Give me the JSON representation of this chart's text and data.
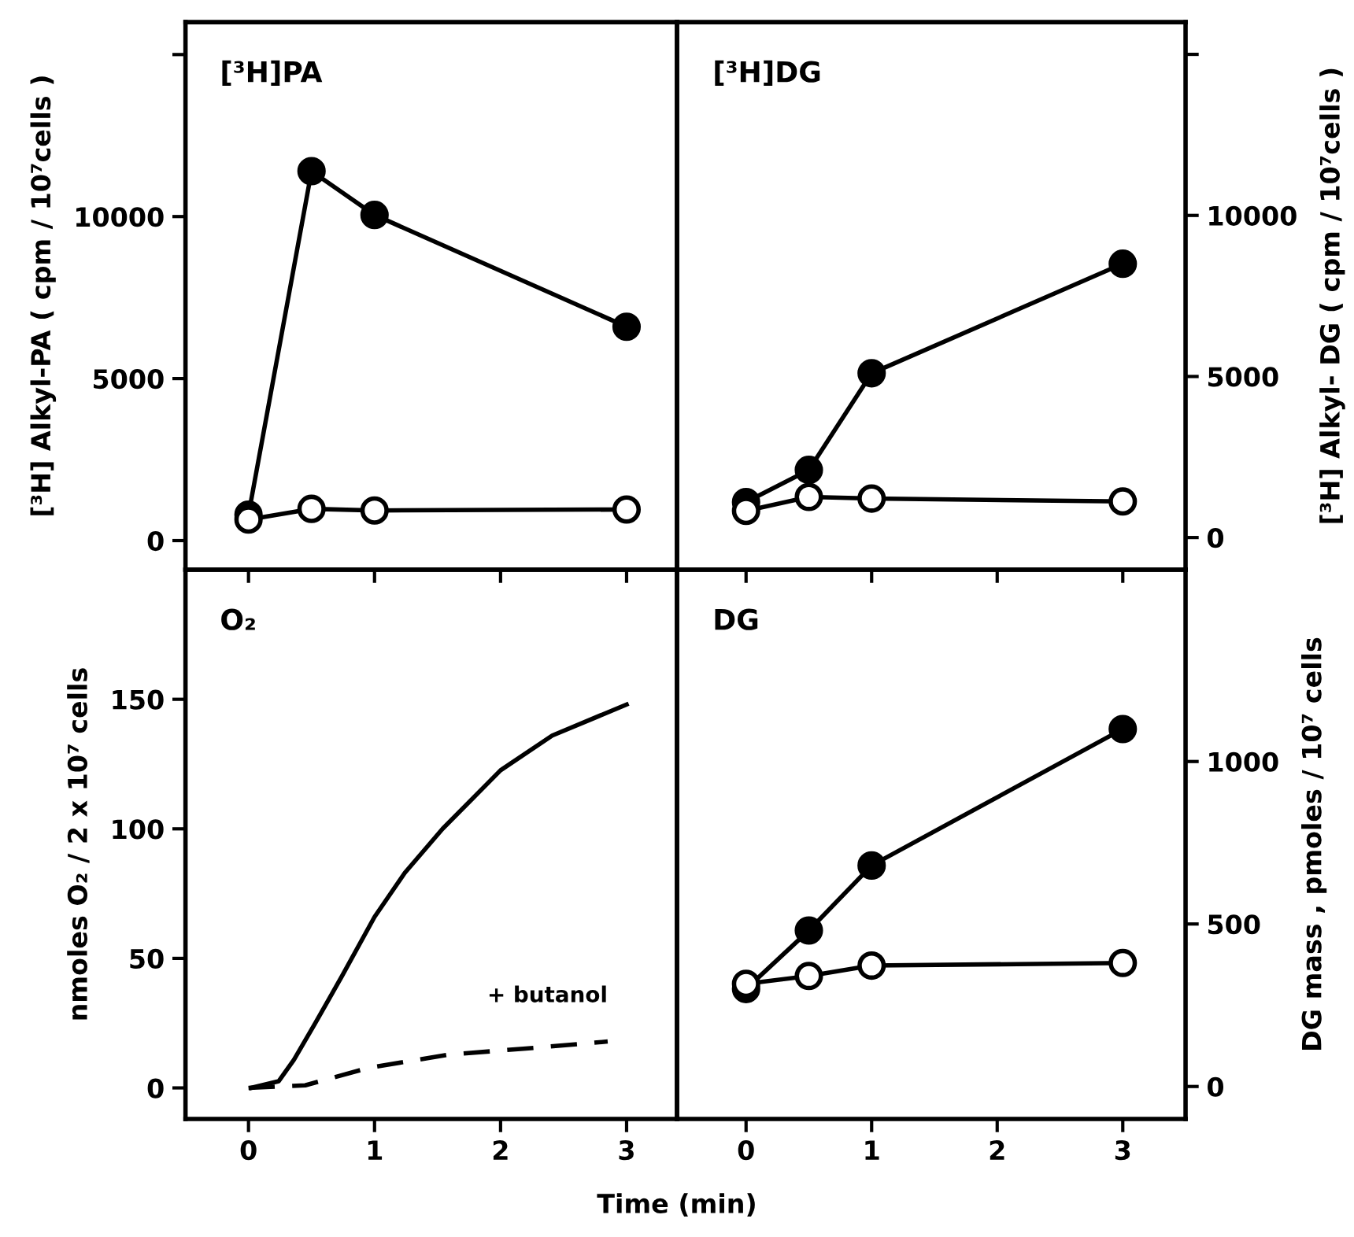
{
  "chart_data": [
    {
      "type": "line",
      "title": "[³H]PA",
      "ylabel": "[³H] Alkyl-PA ( cpm / 10⁷cells )",
      "x": [
        0,
        0.5,
        1,
        3
      ],
      "xlim": [
        -0.5,
        3.4
      ],
      "xticks": [
        {
          "value": 0,
          "label": null
        },
        {
          "value": 1,
          "label": null
        },
        {
          "value": 2,
          "label": null
        },
        {
          "value": 3,
          "label": null
        }
      ],
      "ylim": [
        -900,
        16000
      ],
      "yticks": [
        0,
        5000,
        10000,
        {
          "value": 15000,
          "label": null
        }
      ],
      "tick_labels": "y",
      "marker": "circle",
      "grid": false,
      "legend": false,
      "series": [
        {
          "color": "#000000",
          "values": [
            800,
            11400,
            10050,
            6600
          ]
        },
        {
          "color": "#ffffff",
          "values": [
            650,
            980,
            930,
            960
          ]
        }
      ]
    },
    {
      "type": "line",
      "title": "[³H]DG",
      "y2label": "[³H] Alkyl- DG ( cpm / 10⁷cells )",
      "x": [
        0,
        0.5,
        1,
        3
      ],
      "xlim": [
        -0.55,
        3.5
      ],
      "xticks": [
        {
          "value": 0,
          "label": null
        },
        {
          "value": 1,
          "label": null
        },
        {
          "value": 2,
          "label": null
        },
        {
          "value": 3,
          "label": null
        }
      ],
      "y2lim": [
        -1000,
        16000
      ],
      "y2ticks": [
        0,
        5000,
        10000,
        {
          "value": 15000,
          "label": null
        }
      ],
      "tick_labels": "y",
      "marker": "circle",
      "grid": false,
      "legend": false,
      "series": [
        {
          "color": "#000000",
          "axis": "y2",
          "values": [
            1100,
            2100,
            5100,
            8500
          ]
        },
        {
          "color": "#ffffff",
          "axis": "y2",
          "values": [
            830,
            1260,
            1210,
            1120
          ]
        }
      ]
    },
    {
      "type": "line",
      "title": "O₂",
      "ylabel": "nmoles O₂ / 2 x 10⁷ cells",
      "xlabel": "Time (min)",
      "xlim": [
        -0.5,
        3.4
      ],
      "xticks": [
        0,
        1,
        2,
        3
      ],
      "ylim": [
        -12,
        200
      ],
      "yticks": [
        0,
        50,
        100,
        150
      ],
      "marker": "none",
      "grid": false,
      "legend": false,
      "series": [
        {
          "color": "#000000",
          "line_style": "solid",
          "x": [
            0.02,
            0.24,
            0.36,
            0.53,
            0.74,
            1.0,
            1.24,
            1.54,
            2.0,
            2.41,
            3.0
          ],
          "values": [
            0,
            2.6,
            10.8,
            25,
            43,
            66,
            83,
            100,
            122.6,
            136,
            148
          ]
        },
        {
          "name": "+ butanol",
          "color": "#000000",
          "line_style": "dashed",
          "x": [
            0,
            0.45,
            0.95,
            1.58,
            2.2,
            2.85
          ],
          "values": [
            0,
            1,
            7.7,
            12.8,
            15.2,
            17.9
          ]
        }
      ]
    },
    {
      "type": "line",
      "title": "DG",
      "y2label": "DG mass , pmoles / 10⁷ cells",
      "x": [
        0,
        0.5,
        1,
        3
      ],
      "xlim": [
        -0.55,
        3.5
      ],
      "xticks": [
        0,
        1,
        2,
        3
      ],
      "y2lim": [
        -100,
        1590
      ],
      "y2ticks": [
        0,
        500,
        1000
      ],
      "marker": "circle",
      "grid": false,
      "legend": false,
      "series": [
        {
          "color": "#000000",
          "axis": "y2",
          "values": [
            300,
            480,
            680,
            1100
          ]
        },
        {
          "color": "#ffffff",
          "axis": "y2",
          "values": [
            316,
            340,
            372,
            380
          ]
        }
      ]
    }
  ]
}
